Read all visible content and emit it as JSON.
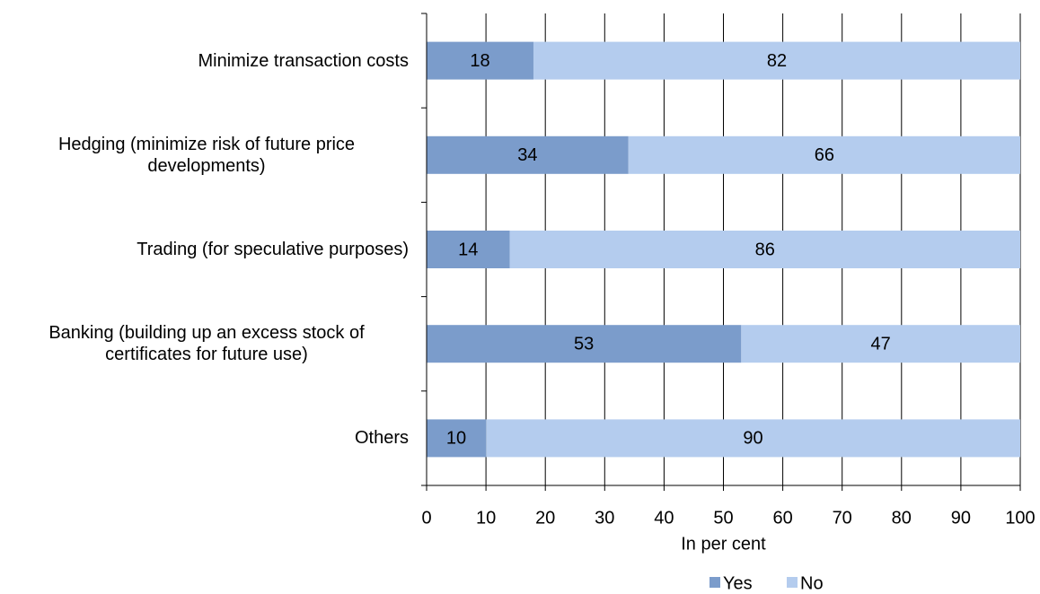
{
  "chart_data": {
    "type": "bar",
    "orientation": "horizontal",
    "stacked": true,
    "categories": [
      "Minimize transaction costs",
      "Hedging (minimize risk of future price developments)",
      "Trading (for speculative purposes)",
      "Banking (building up an excess stock of certificates for future use)",
      "Others"
    ],
    "series": [
      {
        "name": "Yes",
        "color": "#7b9ccb",
        "values": [
          18,
          34,
          14,
          53,
          10
        ]
      },
      {
        "name": "No",
        "color": "#b4ccee",
        "values": [
          82,
          66,
          86,
          47,
          90
        ]
      }
    ],
    "xlabel": "In per cent",
    "xlim": [
      0,
      100
    ],
    "xticks": [
      0,
      10,
      20,
      30,
      40,
      50,
      60,
      70,
      80,
      90,
      100
    ],
    "grid": true,
    "legend": "bottom"
  }
}
